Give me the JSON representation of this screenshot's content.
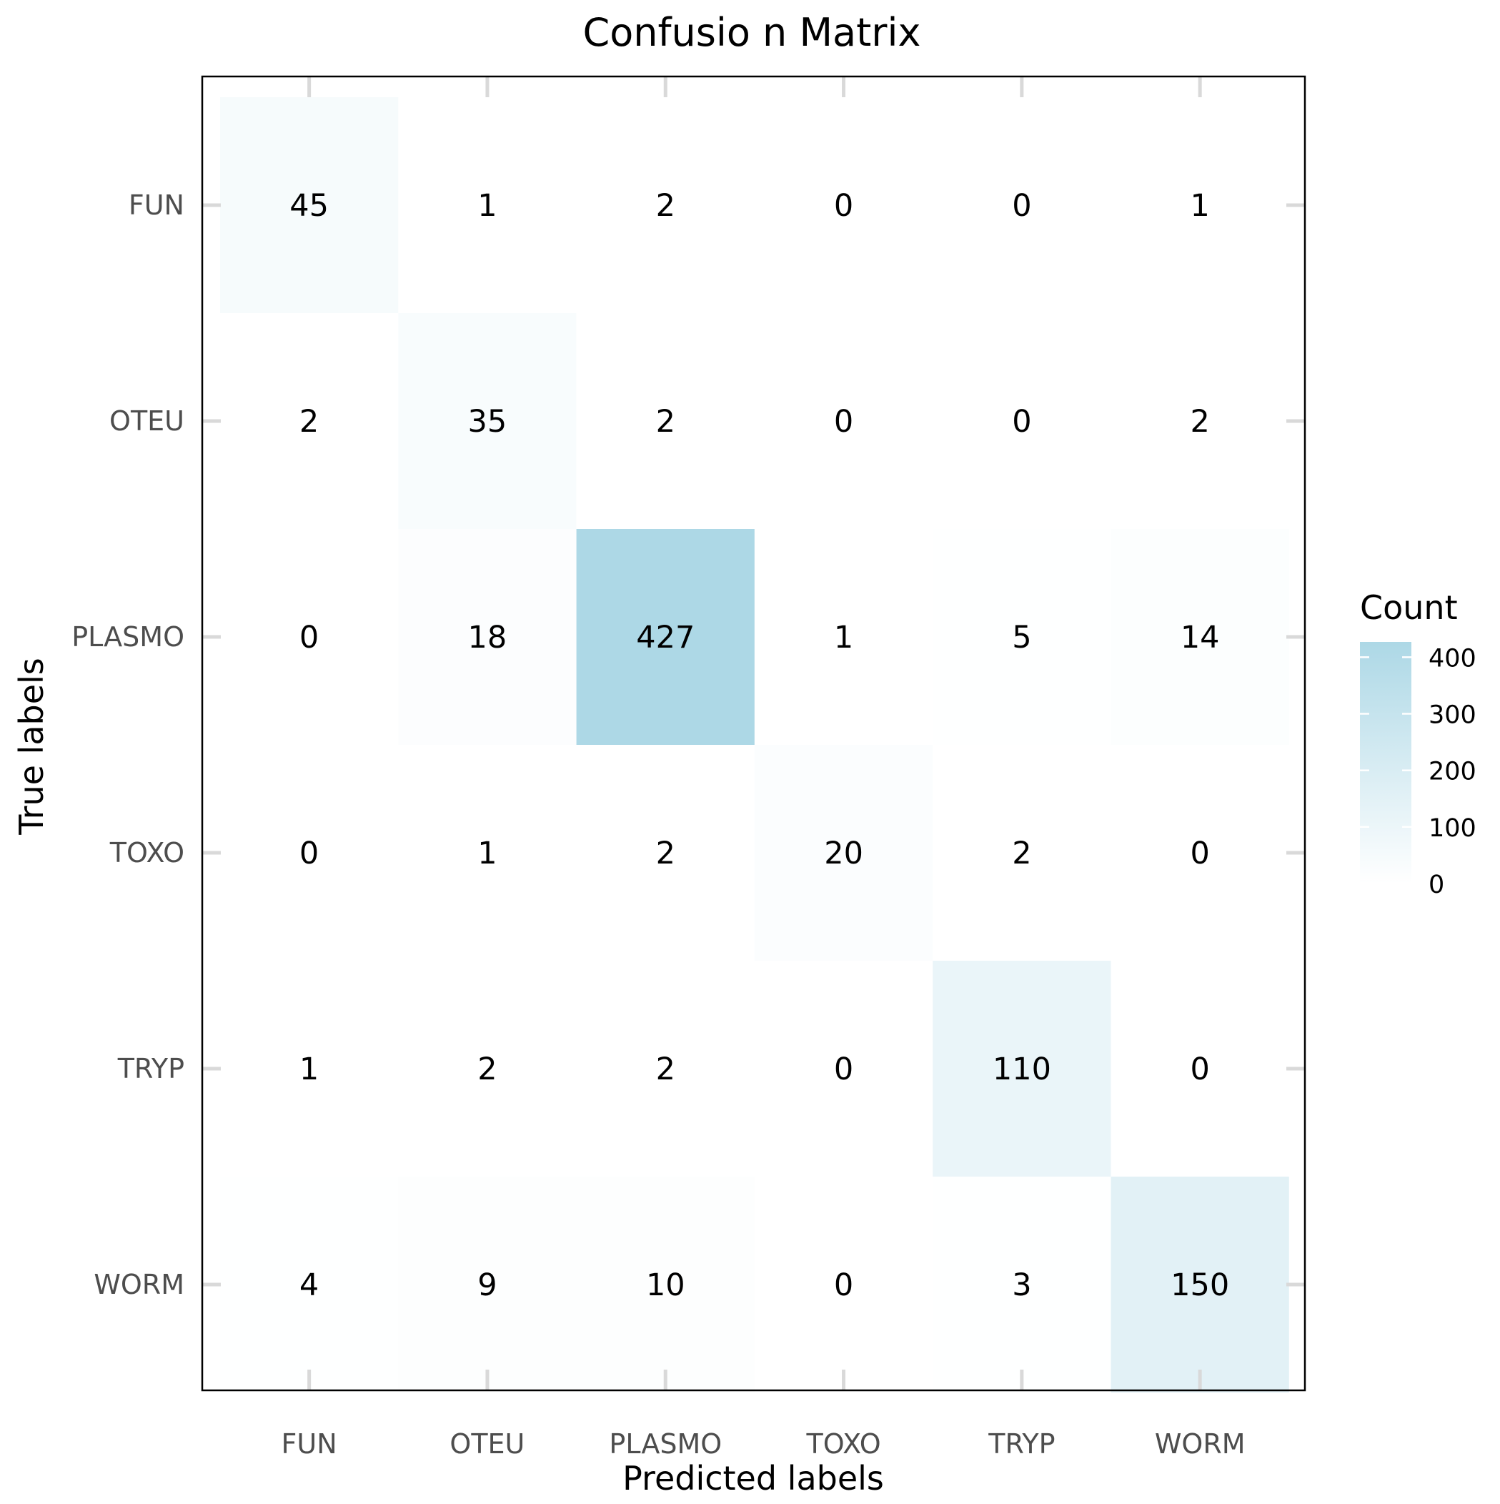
{
  "chart_data": {
    "type": "heatmap",
    "title": "Confusio  n Matrix",
    "xlabel": "Predicted labels",
    "ylabel": "True labels",
    "x_categories": [
      "FUN",
      "OTEU",
      "PLASMO",
      "TOXO",
      "TRYP",
      "WORM"
    ],
    "y_categories": [
      "FUN",
      "OTEU",
      "PLASMO",
      "TOXO",
      "TRYP",
      "WORM"
    ],
    "values": [
      [
        45,
        1,
        2,
        0,
        0,
        1
      ],
      [
        2,
        35,
        2,
        0,
        0,
        2
      ],
      [
        0,
        18,
        427,
        1,
        5,
        14
      ],
      [
        0,
        1,
        2,
        20,
        2,
        0
      ],
      [
        1,
        2,
        2,
        0,
        110,
        0
      ],
      [
        4,
        9,
        10,
        0,
        3,
        150
      ]
    ],
    "legend": {
      "title": "Count",
      "ticks": [
        0,
        100,
        200,
        300,
        400
      ],
      "range": [
        0,
        427
      ]
    },
    "colors": {
      "low": "#ffffff",
      "high": "#add8e6",
      "panel_border": "#000000",
      "tick_mark": "#d9d9d9"
    },
    "grid": false
  }
}
